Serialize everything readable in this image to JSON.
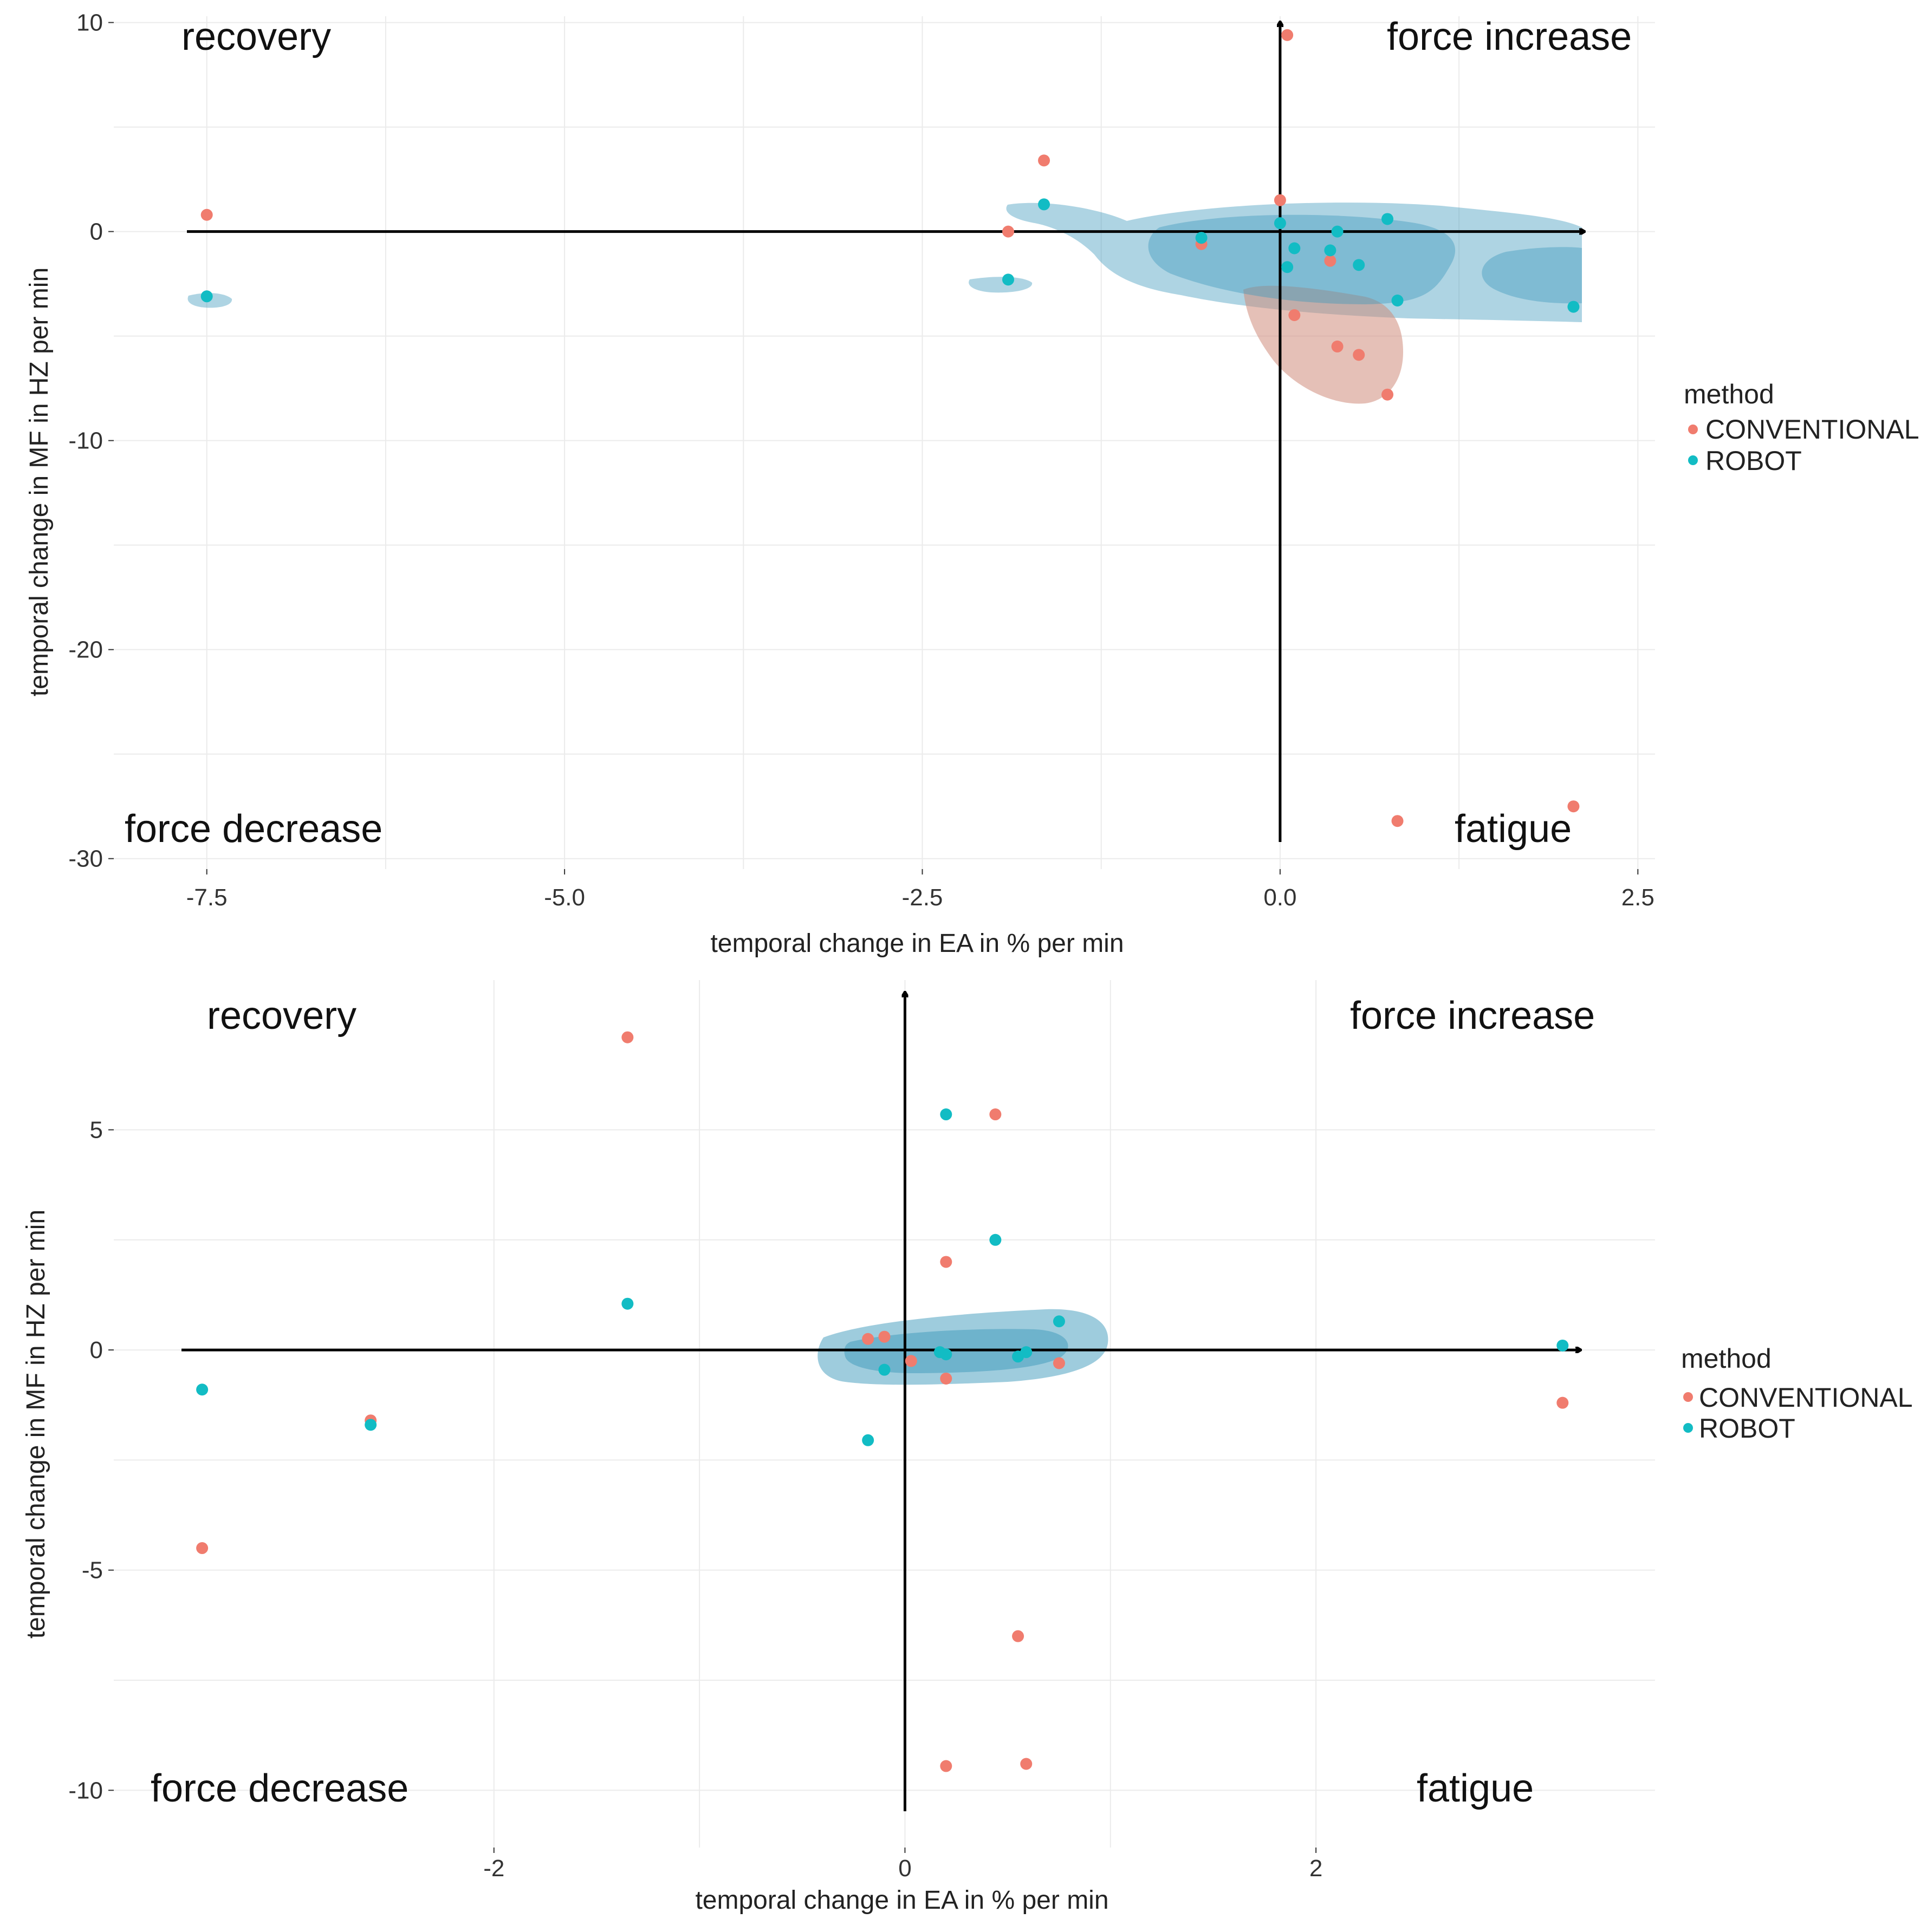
{
  "colors": {
    "conventional": "#F07C6E",
    "robot": "#12BCC4",
    "robot_density": "#3E99BC",
    "conventional_density": "#D08C7C",
    "grid": "#EBEBEB",
    "axis": "#000000"
  },
  "chart_data": [
    {
      "type": "scatter",
      "xlabel": "temporal change in EA in % per min",
      "ylabel": "temporal change in MF in HZ per min",
      "xlim": [
        -8.15,
        2.62
      ],
      "ylim": [
        -30.5,
        10.3
      ],
      "x_ticks": [
        -7.5,
        -5.0,
        -2.5,
        0.0,
        2.5
      ],
      "x_tick_labels": [
        "-7.5",
        "-5.0",
        "-2.5",
        "0.0",
        "2.5"
      ],
      "y_ticks": [
        10,
        0,
        -10,
        -20,
        -30
      ],
      "y_tick_labels": [
        "10",
        "0",
        "-10",
        "-20",
        "-30"
      ],
      "quadrant_labels": {
        "top_left": "recovery",
        "top_right": "force increase",
        "bottom_left": "force decrease",
        "bottom_right": "fatigue"
      },
      "legend": {
        "title": "method",
        "entries": [
          "CONVENTIONAL",
          "ROBOT"
        ]
      },
      "series": [
        {
          "name": "CONVENTIONAL",
          "points": [
            [
              -7.5,
              0.8
            ],
            [
              -1.9,
              0.0
            ],
            [
              -1.65,
              3.4
            ],
            [
              0.05,
              9.4
            ],
            [
              0.0,
              1.5
            ],
            [
              -0.55,
              -0.6
            ],
            [
              0.35,
              -1.4
            ],
            [
              0.1,
              -4.0
            ],
            [
              0.4,
              -5.5
            ],
            [
              0.55,
              -5.9
            ],
            [
              0.75,
              -7.8
            ],
            [
              0.82,
              -28.2
            ],
            [
              2.05,
              -27.5
            ]
          ]
        },
        {
          "name": "ROBOT",
          "points": [
            [
              -7.5,
              -3.1
            ],
            [
              -1.9,
              -2.3
            ],
            [
              -1.65,
              1.3
            ],
            [
              -0.55,
              -0.3
            ],
            [
              0.0,
              0.4
            ],
            [
              0.05,
              -1.7
            ],
            [
              0.1,
              -0.8
            ],
            [
              0.35,
              -0.9
            ],
            [
              0.4,
              0.0
            ],
            [
              0.55,
              -1.6
            ],
            [
              0.75,
              0.6
            ],
            [
              0.82,
              -3.3
            ],
            [
              2.05,
              -3.6
            ]
          ]
        }
      ]
    },
    {
      "type": "scatter",
      "xlabel": "temporal change in EA in % per min",
      "ylabel": "temporal change in MF in HZ per min",
      "xlim": [
        -3.85,
        3.65
      ],
      "ylim": [
        -11.3,
        8.4
      ],
      "x_ticks": [
        -2,
        0,
        2
      ],
      "x_tick_labels": [
        "-2",
        "0",
        "2"
      ],
      "y_ticks": [
        5,
        0,
        -5,
        -10
      ],
      "y_tick_labels": [
        "5",
        "0",
        "-5",
        "-10"
      ],
      "quadrant_labels": {
        "top_left": "recovery",
        "top_right": "force increase",
        "bottom_left": "force decrease",
        "bottom_right": "fatigue"
      },
      "legend": {
        "title": "method",
        "entries": [
          "CONVENTIONAL",
          "ROBOT"
        ]
      },
      "series": [
        {
          "name": "CONVENTIONAL",
          "points": [
            [
              -3.42,
              -4.5
            ],
            [
              -2.6,
              -1.6
            ],
            [
              -1.35,
              7.1
            ],
            [
              -0.18,
              0.25
            ],
            [
              -0.1,
              0.3
            ],
            [
              0.03,
              -0.25
            ],
            [
              0.2,
              2.0
            ],
            [
              0.2,
              -0.65
            ],
            [
              0.44,
              5.35
            ],
            [
              0.55,
              -6.5
            ],
            [
              0.59,
              -9.4
            ],
            [
              0.75,
              -0.3
            ],
            [
              0.2,
              -9.45
            ],
            [
              3.2,
              -1.2
            ]
          ]
        },
        {
          "name": "ROBOT",
          "points": [
            [
              -3.42,
              -0.9
            ],
            [
              -2.6,
              -1.7
            ],
            [
              -1.35,
              1.05
            ],
            [
              -0.18,
              -2.05
            ],
            [
              -0.1,
              -0.45
            ],
            [
              0.17,
              -0.05
            ],
            [
              0.2,
              -0.1
            ],
            [
              0.2,
              5.35
            ],
            [
              0.44,
              2.5
            ],
            [
              0.55,
              -0.15
            ],
            [
              0.59,
              -0.05
            ],
            [
              0.75,
              0.65
            ],
            [
              3.2,
              0.1
            ]
          ]
        }
      ]
    }
  ]
}
